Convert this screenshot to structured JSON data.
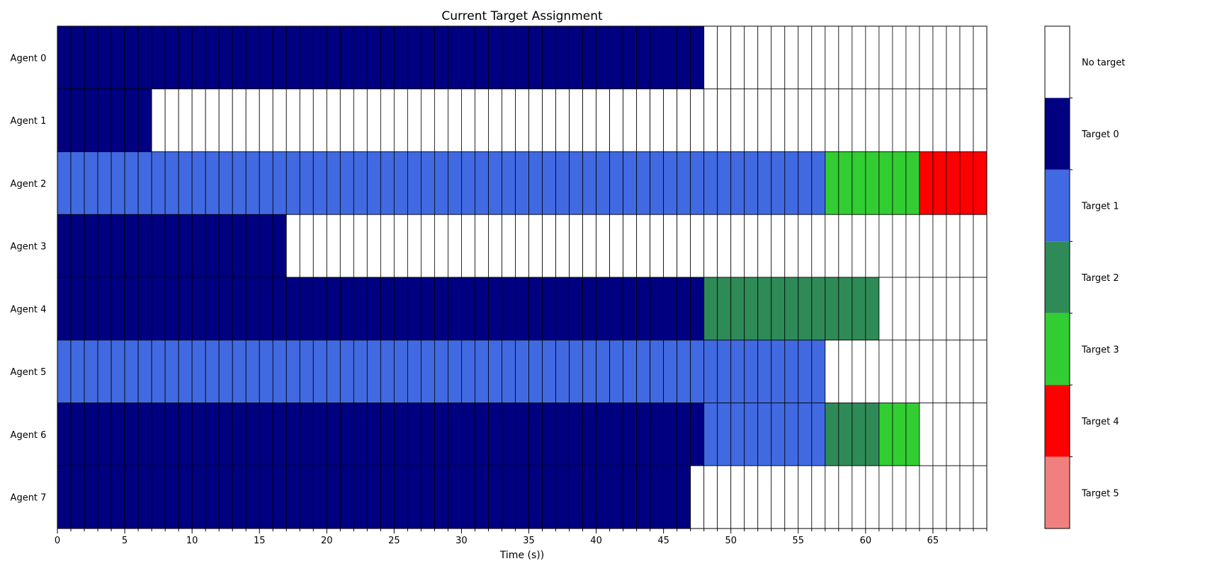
{
  "chart_data": {
    "type": "heatmap",
    "title": "Current Target Assignment",
    "xlabel": "Time (s))",
    "ylabel": "",
    "xlim": [
      0,
      69
    ],
    "x_major_ticks": [
      0,
      5,
      10,
      15,
      20,
      25,
      30,
      35,
      40,
      45,
      50,
      55,
      60,
      65
    ],
    "x_minor_tick_step": 1,
    "agents": [
      "Agent 0",
      "Agent 1",
      "Agent 2",
      "Agent 3",
      "Agent 4",
      "Agent 5",
      "Agent 6",
      "Agent 7"
    ],
    "categories": [
      {
        "label": "No target",
        "color": "#ffffff"
      },
      {
        "label": "Target 0",
        "color": "#000080"
      },
      {
        "label": "Target 1",
        "color": "#4169e1"
      },
      {
        "label": "Target 2",
        "color": "#2e8b57"
      },
      {
        "label": "Target 3",
        "color": "#32cd32"
      },
      {
        "label": "Target 4",
        "color": "#ff0000"
      },
      {
        "label": "Target 5",
        "color": "#f08080"
      }
    ],
    "assignments": [
      {
        "agent": "Agent 0",
        "segments": [
          {
            "start": 0,
            "end": 48,
            "target": "Target 0"
          },
          {
            "start": 48,
            "end": 69,
            "target": "No target"
          }
        ]
      },
      {
        "agent": "Agent 1",
        "segments": [
          {
            "start": 0,
            "end": 7,
            "target": "Target 0"
          },
          {
            "start": 7,
            "end": 69,
            "target": "No target"
          }
        ]
      },
      {
        "agent": "Agent 2",
        "segments": [
          {
            "start": 0,
            "end": 57,
            "target": "Target 1"
          },
          {
            "start": 57,
            "end": 64,
            "target": "Target 3"
          },
          {
            "start": 64,
            "end": 69,
            "target": "Target 4"
          }
        ]
      },
      {
        "agent": "Agent 3",
        "segments": [
          {
            "start": 0,
            "end": 17,
            "target": "Target 0"
          },
          {
            "start": 17,
            "end": 69,
            "target": "No target"
          }
        ]
      },
      {
        "agent": "Agent 4",
        "segments": [
          {
            "start": 0,
            "end": 48,
            "target": "Target 0"
          },
          {
            "start": 48,
            "end": 61,
            "target": "Target 2"
          },
          {
            "start": 61,
            "end": 69,
            "target": "No target"
          }
        ]
      },
      {
        "agent": "Agent 5",
        "segments": [
          {
            "start": 0,
            "end": 57,
            "target": "Target 1"
          },
          {
            "start": 57,
            "end": 69,
            "target": "No target"
          }
        ]
      },
      {
        "agent": "Agent 6",
        "segments": [
          {
            "start": 0,
            "end": 48,
            "target": "Target 0"
          },
          {
            "start": 48,
            "end": 57,
            "target": "Target 1"
          },
          {
            "start": 57,
            "end": 61,
            "target": "Target 2"
          },
          {
            "start": 61,
            "end": 64,
            "target": "Target 3"
          },
          {
            "start": 64,
            "end": 69,
            "target": "No target"
          }
        ]
      },
      {
        "agent": "Agent 7",
        "segments": [
          {
            "start": 0,
            "end": 47,
            "target": "Target 0"
          },
          {
            "start": 47,
            "end": 69,
            "target": "No target"
          }
        ]
      }
    ],
    "grid": true,
    "legend": "colorbar-right"
  }
}
